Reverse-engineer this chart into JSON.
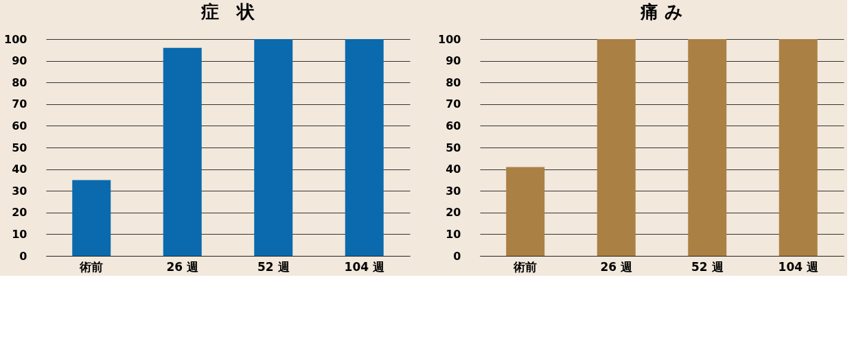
{
  "chart_data": [
    {
      "type": "bar",
      "title": "症　状",
      "categories": [
        "術前",
        "26 週",
        "52 週",
        "104 週"
      ],
      "values": [
        35,
        96,
        100,
        100
      ],
      "color": "#0a6aad",
      "ylim": [
        0,
        100
      ],
      "yticks": [
        0,
        10,
        20,
        30,
        40,
        50,
        60,
        70,
        80,
        90,
        100
      ],
      "grid": "y"
    },
    {
      "type": "bar",
      "title": "痛 み",
      "categories": [
        "術前",
        "26 週",
        "52 週",
        "104 週"
      ],
      "values": [
        41,
        100,
        100,
        100
      ],
      "color": "#ab8044",
      "ylim": [
        0,
        100
      ],
      "yticks": [
        0,
        10,
        20,
        30,
        40,
        50,
        60,
        70,
        80,
        90,
        100
      ],
      "grid": "y"
    }
  ]
}
